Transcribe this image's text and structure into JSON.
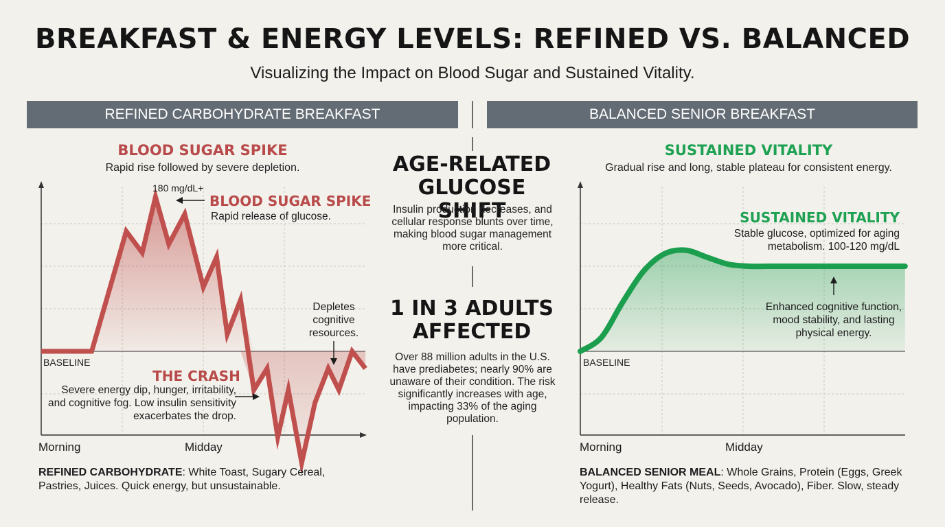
{
  "title": "BREAKFAST & ENERGY LEVELS: REFINED VS. BALANCED",
  "subtitle": "Visualizing the Impact on Blood Sugar and Sustained Vitality.",
  "left": {
    "header": "REFINED CARBOHYDRATE BREAKFAST",
    "section_title": "BLOOD SUGAR SPIKE",
    "section_subtitle": "Rapid rise followed by severe depletion.",
    "peak_label": "180 mg/dL+",
    "spike_title": "BLOOD SUGAR SPIKE",
    "spike_desc": "Rapid release of glucose.",
    "depletes_note": "Depletes cognitive resources.",
    "baseline_label": "BASELINE",
    "crash_title": "THE CRASH",
    "crash_desc": "Severe energy dip, hunger, irritability, and cognitive fog. Low insulin sensitivity exacerbates the drop.",
    "x_label_start": "Morning",
    "x_label_mid": "Midday",
    "bottom_bold": "REFINED CARBOHYDRATE",
    "bottom_rest": ": White Toast, Sugary Cereal, Pastries, Juices. Quick energy, but unsustainable."
  },
  "center": {
    "heading1": "AGE-RELATED GLUCOSE SHIFT",
    "para1": "Insulin production decreases, and cellular response blunts over time, making blood sugar management more critical.",
    "heading2": "1 IN 3 ADULTS AFFECTED",
    "para2": "Over 88 million adults in the U.S. have prediabetes; nearly 90% are unaware of their condition. The risk significantly increases with age, impacting 33% of the aging population."
  },
  "right": {
    "header": "BALANCED SENIOR BREAKFAST",
    "section_title": "SUSTAINED VITALITY",
    "section_subtitle": "Gradual rise and long, stable plateau for consistent energy.",
    "plateau_title": "SUSTAINED VITALITY",
    "plateau_desc": "Stable glucose, optimized for aging metabolism. 100-120 mg/dL",
    "benefit_note": "Enhanced cognitive function, mood stability, and lasting physical energy.",
    "baseline_label": "BASELINE",
    "x_label_start": "Morning",
    "x_label_mid": "Midday",
    "bottom_bold": "BALANCED SENIOR MEAL",
    "bottom_rest": ": Whole Grains, Protein (Eggs, Greek Yogurt), Healthy Fats (Nuts, Seeds, Avocado), Fiber. Slow, steady release."
  },
  "colors": {
    "refined": "#c0504d",
    "balanced": "#1b9e4e",
    "header_bg": "#636c74",
    "background": "#f3f1ec"
  },
  "chart_data": [
    {
      "type": "line",
      "series": [
        {
          "x": [
            0,
            0.19,
            0.32,
            0.38,
            0.43,
            0.48,
            0.54,
            0.61,
            0.66,
            0.7,
            0.75,
            0.8,
            0.85,
            0.89,
            0.93,
            0.98,
            1.03,
            1.08,
            1.12,
            1.17,
            1.22
          ],
          "y": [
            0,
            0,
            140,
            115,
            180,
            125,
            160,
            75,
            110,
            20,
            60,
            -45,
            -20,
            -100,
            -45,
            -130,
            -60,
            -20,
            -45,
            0,
            -20
          ]
        }
      ],
      "y_baseline": 0,
      "annotations": [
        "180 mg/dL+",
        "BASELINE"
      ]
    },
    {
      "type": "area",
      "series": [
        {
          "x": [
            0,
            0.1,
            0.2,
            0.3,
            0.4,
            0.5,
            0.6,
            0.7,
            0.8,
            0.9,
            1.0,
            1.1,
            1.2,
            1.3,
            1.4,
            1.54
          ],
          "y": [
            0,
            20,
            70,
            115,
            140,
            145,
            135,
            125,
            122,
            122,
            122,
            122,
            122,
            122,
            122,
            122
          ]
        }
      ],
      "y_baseline": 0,
      "annotations": [
        "100-120 mg/dL",
        "BASELINE"
      ]
    }
  ]
}
